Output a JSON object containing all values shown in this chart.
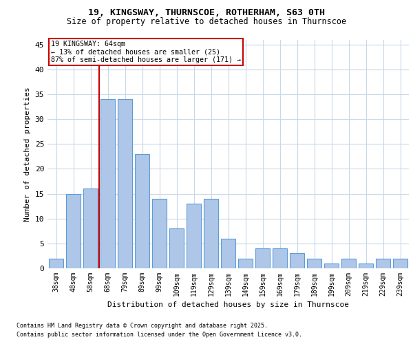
{
  "title1": "19, KINGSWAY, THURNSCOE, ROTHERHAM, S63 0TH",
  "title2": "Size of property relative to detached houses in Thurnscoe",
  "xlabel": "Distribution of detached houses by size in Thurnscoe",
  "ylabel": "Number of detached properties",
  "categories": [
    "38sqm",
    "48sqm",
    "58sqm",
    "68sqm",
    "79sqm",
    "89sqm",
    "99sqm",
    "109sqm",
    "119sqm",
    "129sqm",
    "139sqm",
    "149sqm",
    "159sqm",
    "169sqm",
    "179sqm",
    "189sqm",
    "199sqm",
    "209sqm",
    "219sqm",
    "229sqm",
    "239sqm"
  ],
  "values": [
    2,
    15,
    16,
    34,
    34,
    23,
    14,
    8,
    13,
    14,
    6,
    2,
    4,
    4,
    3,
    2,
    1,
    2,
    1,
    2,
    2
  ],
  "bar_color": "#aec6e8",
  "bar_edge_color": "#5b9bd5",
  "vline_color": "#cc0000",
  "annotation_line1": "19 KINGSWAY: 64sqm",
  "annotation_line2": "← 13% of detached houses are smaller (25)",
  "annotation_line3": "87% of semi-detached houses are larger (171) →",
  "annotation_box_color": "#ffffff",
  "annotation_box_edge": "#cc0000",
  "ylim": [
    0,
    46
  ],
  "yticks": [
    0,
    5,
    10,
    15,
    20,
    25,
    30,
    35,
    40,
    45
  ],
  "background_color": "#ffffff",
  "grid_color": "#c8d8e8",
  "footer1": "Contains HM Land Registry data © Crown copyright and database right 2025.",
  "footer2": "Contains public sector information licensed under the Open Government Licence v3.0."
}
